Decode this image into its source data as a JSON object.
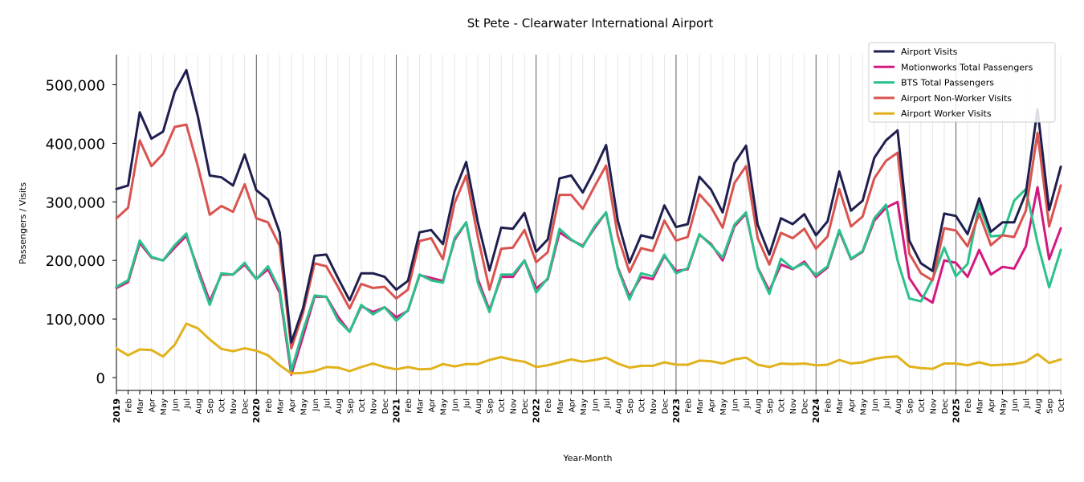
{
  "chart_data": {
    "type": "line",
    "title": "St Pete - Clearwater International Airport",
    "xlabel": "Year-Month",
    "ylabel": "Passengers / Visits",
    "ylim": [
      -20000,
      550000
    ],
    "yticks": [
      0,
      100000,
      200000,
      300000,
      400000,
      500000
    ],
    "ytick_labels": [
      "0",
      "100,000",
      "200,000",
      "300,000",
      "400,000",
      "500,000"
    ],
    "legend_position": "top-right",
    "grid": "vertical-monthly",
    "month_labels": [
      "Jan",
      "Feb",
      "Mar",
      "Apr",
      "May",
      "Jun",
      "Jul",
      "Aug",
      "Sep",
      "Oct",
      "Nov",
      "Dec"
    ],
    "years": [
      "2019",
      "2020",
      "2021",
      "2022",
      "2023",
      "2024",
      "2025"
    ],
    "start": "2019-01",
    "x": [
      "2019-01",
      "2019-02",
      "2019-03",
      "2019-04",
      "2019-05",
      "2019-06",
      "2019-07",
      "2019-08",
      "2019-09",
      "2019-10",
      "2019-11",
      "2019-12",
      "2020-01",
      "2020-02",
      "2020-03",
      "2020-04",
      "2020-05",
      "2020-06",
      "2020-07",
      "2020-08",
      "2020-09",
      "2020-10",
      "2020-11",
      "2020-12",
      "2021-01",
      "2021-02",
      "2021-03",
      "2021-04",
      "2021-05",
      "2021-06",
      "2021-07",
      "2021-08",
      "2021-09",
      "2021-10",
      "2021-11",
      "2021-12",
      "2022-01",
      "2022-02",
      "2022-03",
      "2022-04",
      "2022-05",
      "2022-06",
      "2022-07",
      "2022-08",
      "2022-09",
      "2022-10",
      "2022-11",
      "2022-12",
      "2023-01",
      "2023-02",
      "2023-03",
      "2023-04",
      "2023-05",
      "2023-06",
      "2023-07",
      "2023-08",
      "2023-09",
      "2023-10",
      "2023-11",
      "2023-12",
      "2024-01",
      "2024-02",
      "2024-03",
      "2024-04",
      "2024-05",
      "2024-06",
      "2024-07",
      "2024-08",
      "2024-09",
      "2024-10",
      "2024-11",
      "2024-12",
      "2025-01",
      "2025-02",
      "2025-03",
      "2025-04",
      "2025-05",
      "2025-06",
      "2025-07",
      "2025-08",
      "2025-09",
      "2025-10"
    ],
    "series": [
      {
        "name": "Airport Visits",
        "color": "#1f1f4f",
        "values": [
          322000,
          328000,
          453000,
          408000,
          420000,
          488000,
          525000,
          445000,
          345000,
          342000,
          328000,
          381000,
          320000,
          304000,
          248000,
          60000,
          118000,
          208000,
          210000,
          170000,
          132000,
          178000,
          178000,
          172000,
          150000,
          165000,
          248000,
          252000,
          228000,
          318000,
          368000,
          265000,
          183000,
          256000,
          254000,
          281000,
          215000,
          236000,
          340000,
          345000,
          316000,
          354000,
          397000,
          268000,
          196000,
          243000,
          238000,
          294000,
          257000,
          262000,
          343000,
          321000,
          282000,
          366000,
          396000,
          261000,
          210000,
          272000,
          262000,
          279000,
          243000,
          267000,
          352000,
          285000,
          302000,
          375000,
          405000,
          422000,
          234000,
          195000,
          182000,
          280000,
          276000,
          245000,
          306000,
          249000,
          265000,
          265000,
          315000,
          458000,
          286000,
          360000
        ]
      },
      {
        "name": "Motionworks Total Passengers",
        "color": "#d3197f",
        "values": [
          153000,
          163000,
          230000,
          205000,
          200000,
          222000,
          242000,
          185000,
          130000,
          176000,
          176000,
          193000,
          168000,
          185000,
          145000,
          5000,
          70000,
          138000,
          138000,
          104000,
          78000,
          122000,
          112000,
          120000,
          103000,
          114000,
          175000,
          170000,
          165000,
          235000,
          265000,
          168000,
          115000,
          172000,
          172000,
          200000,
          152000,
          168000,
          248000,
          235000,
          225000,
          255000,
          282000,
          188000,
          138000,
          172000,
          168000,
          208000,
          182000,
          185000,
          244000,
          228000,
          200000,
          258000,
          280000,
          188000,
          148000,
          193000,
          185000,
          198000,
          172000,
          188000,
          250000,
          202000,
          215000,
          268000,
          290000,
          300000,
          170000,
          140000,
          128000,
          200000,
          196000,
          172000,
          218000,
          176000,
          189000,
          186000,
          224000,
          325000,
          202000,
          255000
        ]
      },
      {
        "name": "BTS Total Passengers",
        "color": "#2bc18c",
        "values": [
          155000,
          166000,
          234000,
          206000,
          200000,
          226000,
          246000,
          180000,
          124000,
          178000,
          176000,
          196000,
          168000,
          190000,
          150000,
          12000,
          80000,
          140000,
          138000,
          98000,
          78000,
          124000,
          108000,
          120000,
          97000,
          115000,
          176000,
          166000,
          162000,
          238000,
          265000,
          162000,
          112000,
          176000,
          176000,
          200000,
          145000,
          170000,
          254000,
          236000,
          223000,
          258000,
          282000,
          186000,
          133000,
          178000,
          173000,
          210000,
          178000,
          187000,
          245000,
          226000,
          205000,
          261000,
          282000,
          187000,
          143000,
          203000,
          186000,
          195000,
          175000,
          190000,
          252000,
          203000,
          216000,
          272000,
          295000,
          200000,
          135000,
          130000,
          168000,
          222000,
          173000,
          194000,
          295000,
          241000,
          243000,
          302000,
          322000,
          230000,
          154000,
          218000
        ]
      },
      {
        "name": "Airport Non-Worker Visits",
        "color": "#d9534f",
        "values": [
          272000,
          290000,
          405000,
          361000,
          382000,
          428000,
          432000,
          360000,
          278000,
          293000,
          283000,
          330000,
          272000,
          265000,
          225000,
          50000,
          110000,
          195000,
          190000,
          155000,
          118000,
          160000,
          153000,
          155000,
          135000,
          150000,
          233000,
          238000,
          202000,
          298000,
          345000,
          240000,
          150000,
          220000,
          222000,
          252000,
          197000,
          214000,
          312000,
          312000,
          288000,
          326000,
          362000,
          242000,
          180000,
          221000,
          216000,
          268000,
          234000,
          240000,
          313000,
          291000,
          256000,
          332000,
          361000,
          238000,
          193000,
          247000,
          238000,
          254000,
          220000,
          241000,
          322000,
          258000,
          275000,
          340000,
          370000,
          384000,
          212000,
          178000,
          166000,
          255000,
          251000,
          224000,
          280000,
          226000,
          243000,
          240000,
          285000,
          418000,
          258000,
          328000
        ]
      },
      {
        "name": "Airport Worker Visits",
        "color": "#e1b21c",
        "values": [
          50000,
          38000,
          48000,
          47000,
          36000,
          56000,
          92000,
          84000,
          65000,
          49000,
          45000,
          50000,
          46000,
          38000,
          21000,
          7000,
          8000,
          11000,
          18000,
          17000,
          11000,
          18000,
          24000,
          18000,
          14000,
          18000,
          14000,
          15000,
          23000,
          19000,
          23000,
          23000,
          30000,
          35000,
          30000,
          27000,
          18000,
          21000,
          26000,
          31000,
          27000,
          30000,
          34000,
          24000,
          17000,
          20000,
          20000,
          26000,
          22000,
          22000,
          29000,
          28000,
          24000,
          31000,
          34000,
          22000,
          18000,
          24000,
          23000,
          24000,
          21000,
          22000,
          30000,
          24000,
          26000,
          32000,
          35000,
          36000,
          19000,
          16000,
          15000,
          24000,
          24000,
          21000,
          26000,
          21000,
          22000,
          23000,
          27000,
          40000,
          25000,
          31000
        ]
      }
    ]
  }
}
